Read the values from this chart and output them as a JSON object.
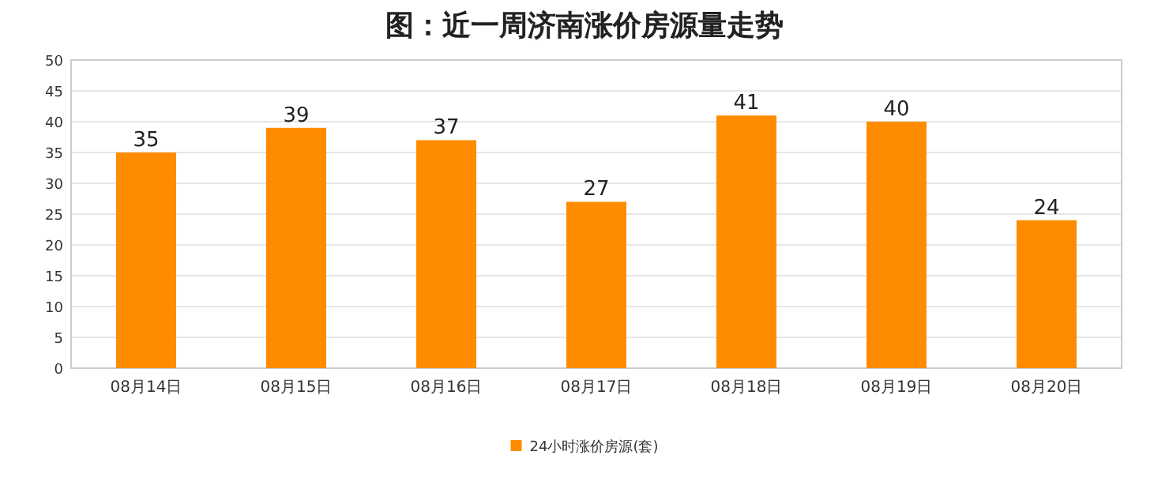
{
  "chart_data": {
    "type": "bar",
    "title": "图：近一周济南涨价房源量走势",
    "categories": [
      "08月14日",
      "08月15日",
      "08月16日",
      "08月17日",
      "08月18日",
      "08月19日",
      "08月20日"
    ],
    "series": [
      {
        "name": "24小时涨价房源(套)",
        "color": "#ff8c00",
        "values": [
          35,
          39,
          37,
          27,
          41,
          40,
          24
        ]
      }
    ],
    "ylim": [
      0,
      50
    ],
    "yticks": [
      0,
      5,
      10,
      15,
      20,
      25,
      30,
      35,
      40,
      45,
      50
    ],
    "grid": "y",
    "legend": "bottom",
    "data_labels": true
  }
}
